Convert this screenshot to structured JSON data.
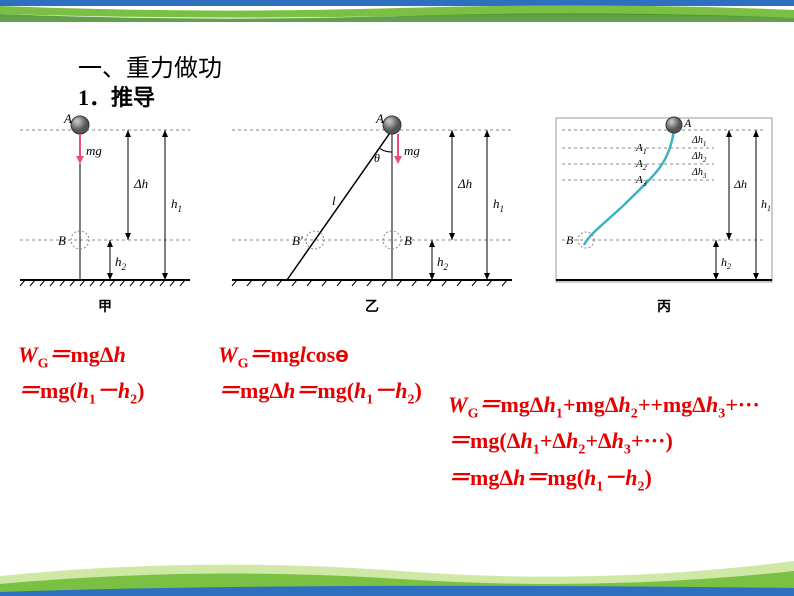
{
  "header": {
    "title": "一、重力做功",
    "subtitle": "1．推导"
  },
  "diagrams": {
    "ball_color": "#6a6a6a",
    "ball_hl": "#d0d0d0",
    "line_color": "#000000",
    "dash_color": "#888888",
    "mg_color": "#e94f78",
    "curve_color": "#3bb3c3",
    "bg": "#ffffff",
    "jia": {
      "label": "甲",
      "A": "A",
      "B": "B",
      "mg": "mg",
      "dh": "Δh",
      "h1": "h",
      "h1_sub": "1",
      "h2": "h",
      "h2_sub": "2"
    },
    "yi": {
      "label": "乙",
      "A": "A",
      "B": "B",
      "Bp": "B′",
      "mg": "mg",
      "l": "l",
      "theta": "θ",
      "dh": "Δh",
      "h1": "h",
      "h1_sub": "1",
      "h2": "h",
      "h2_sub": "2"
    },
    "bing": {
      "label": "丙",
      "A": "A",
      "A1": "A",
      "A1s": "1",
      "A2": "A",
      "A2s": "2",
      "A3": "A",
      "A3s": "3",
      "B": "B",
      "dh1": "Δh",
      "dh1s": "1",
      "dh2": "Δh",
      "dh2s": "2",
      "dh3": "Δh",
      "dh3s": "3",
      "dh": "Δh",
      "h1": "h",
      "h1_sub": "1",
      "h2": "h",
      "h2_sub": "2"
    }
  },
  "formulas": {
    "col1": {
      "l1": "W<sub>G</sub>＝<span class='rm'>mgΔ</span>h",
      "l2": "＝<span class='rm'>mg(</span>h<sub>1</sub>－h<sub>2</sub><span class='rm'>)</span>"
    },
    "col2": {
      "l1": "W<sub>G</sub>＝<span class='rm'>mg</span>l<span class='rm'>cos</span><span class='theta'>ɵ</span>",
      "l2": "＝<span class='rm'>mgΔ</span>h＝<span class='rm'>mg(</span>h<sub>1</sub>－h<sub>2</sub><span class='rm'>)</span>"
    },
    "col3": {
      "l1": "W<sub>G</sub>＝<span class='rm'>mgΔ</span>h<sub>1</sub>+<span class='rm'>mgΔ</span>h<sub>2</sub>++<span class='rm'>mgΔ</span>h<sub>3</sub>+<span class='rm'>···</span>",
      "l2": "＝<span class='rm'>mg(Δ</span>h<sub>1</sub>+<span class='rm'>Δ</span>h<sub>2</sub>+<span class='rm'>Δ</span>h<sub>3</sub>+<span class='rm'>···)</span>",
      "l3": "＝<span class='rm'>mgΔ</span>h＝<span class='rm'>mg(</span>h<sub>1</sub>－h<sub>2</sub><span class='rm'>)</span>"
    }
  },
  "decor": {
    "top_blue": "#2e6fbf",
    "top_green1": "#7ac043",
    "top_green2": "#3a8a1f",
    "wave_green1": "#cfe8a5",
    "wave_green2": "#7ac043",
    "wave_blue": "#2e6fbf"
  }
}
